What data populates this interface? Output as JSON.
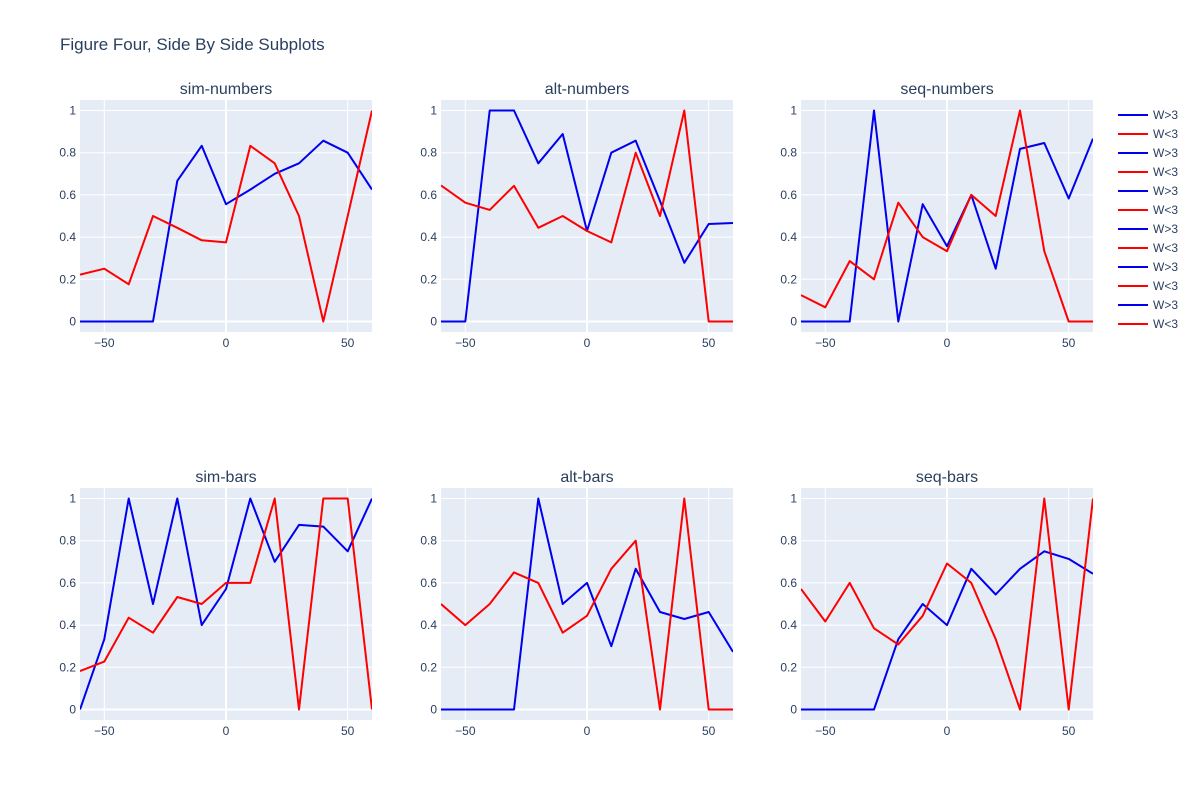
{
  "figure_title": "Figure Four, Side By Side Subplots",
  "colors": {
    "w_gt_3": "#0000ee",
    "w_lt_3": "#ff0000",
    "plot_bg": "#e5ecf6",
    "grid": "#ffffff"
  },
  "legend": {
    "position": "right",
    "entries": [
      {
        "label": "W>3",
        "color": "#0000ee"
      },
      {
        "label": "W<3",
        "color": "#ff0000"
      },
      {
        "label": "W>3",
        "color": "#0000ee"
      },
      {
        "label": "W<3",
        "color": "#ff0000"
      },
      {
        "label": "W>3",
        "color": "#0000ee"
      },
      {
        "label": "W<3",
        "color": "#ff0000"
      },
      {
        "label": "W>3",
        "color": "#0000ee"
      },
      {
        "label": "W<3",
        "color": "#ff0000"
      },
      {
        "label": "W>3",
        "color": "#0000ee"
      },
      {
        "label": "W<3",
        "color": "#ff0000"
      },
      {
        "label": "W>3",
        "color": "#0000ee"
      },
      {
        "label": "W<3",
        "color": "#ff0000"
      }
    ]
  },
  "chart_data": [
    {
      "type": "line",
      "title": "sim-numbers",
      "xlim": [
        -60,
        60
      ],
      "ylim": [
        -0.05,
        1.05
      ],
      "xticks": [
        -50,
        0,
        50
      ],
      "xticklabels": [
        "−50",
        "0",
        "50"
      ],
      "yticks": [
        0,
        0.2,
        0.4,
        0.6,
        0.8,
        1
      ],
      "yticklabels": [
        "0",
        "0.2",
        "0.4",
        "0.6",
        "0.8",
        "1"
      ],
      "grid": true,
      "x": [
        -60,
        -50,
        -40,
        -30,
        -20,
        -10,
        0,
        10,
        20,
        30,
        40,
        50,
        60
      ],
      "series": [
        {
          "name": "W>3",
          "color": "#0000ee",
          "values": [
            0,
            0,
            0,
            0,
            0.667,
            0.833,
            0.556,
            0.625,
            0.7,
            0.75,
            0.857,
            0.8,
            0.625
          ]
        },
        {
          "name": "W<3",
          "color": "#ff0000",
          "values": [
            0.222,
            0.25,
            0.176,
            0.5,
            0.444,
            0.385,
            0.375,
            0.833,
            0.75,
            0.5,
            0,
            0.5,
            1
          ]
        }
      ]
    },
    {
      "type": "line",
      "title": "alt-numbers",
      "xlim": [
        -60,
        60
      ],
      "ylim": [
        -0.05,
        1.05
      ],
      "xticks": [
        -50,
        0,
        50
      ],
      "xticklabels": [
        "−50",
        "0",
        "50"
      ],
      "yticks": [
        0,
        0.2,
        0.4,
        0.6,
        0.8,
        1
      ],
      "yticklabels": [
        "0",
        "0.2",
        "0.4",
        "0.6",
        "0.8",
        "1"
      ],
      "grid": true,
      "x": [
        -60,
        -50,
        -40,
        -30,
        -20,
        -10,
        0,
        10,
        20,
        30,
        40,
        50,
        60
      ],
      "series": [
        {
          "name": "W>3",
          "color": "#0000ee",
          "values": [
            0,
            0,
            1,
            1,
            0.75,
            0.889,
            0.429,
            0.8,
            0.857,
            0.571,
            0.278,
            0.462,
            0.467
          ]
        },
        {
          "name": "W<3",
          "color": "#ff0000",
          "values": [
            0.645,
            0.563,
            0.529,
            0.643,
            0.444,
            0.5,
            0.429,
            0.375,
            0.8,
            0.5,
            1,
            0,
            0
          ]
        }
      ]
    },
    {
      "type": "line",
      "title": "seq-numbers",
      "xlim": [
        -60,
        60
      ],
      "ylim": [
        -0.05,
        1.05
      ],
      "xticks": [
        -50,
        0,
        50
      ],
      "xticklabels": [
        "−50",
        "0",
        "50"
      ],
      "yticks": [
        0,
        0.2,
        0.4,
        0.6,
        0.8,
        1
      ],
      "yticklabels": [
        "0",
        "0.2",
        "0.4",
        "0.6",
        "0.8",
        "1"
      ],
      "grid": true,
      "x": [
        -60,
        -50,
        -40,
        -30,
        -20,
        -10,
        0,
        10,
        20,
        30,
        40,
        50,
        60
      ],
      "series": [
        {
          "name": "W>3",
          "color": "#0000ee",
          "values": [
            0,
            0,
            0,
            1,
            0,
            0.556,
            0.357,
            0.6,
            0.25,
            0.818,
            0.846,
            0.583,
            0.867
          ]
        },
        {
          "name": "W<3",
          "color": "#ff0000",
          "values": [
            0.125,
            0.067,
            0.286,
            0.2,
            0.563,
            0.4,
            0.333,
            0.6,
            0.5,
            1,
            0.333,
            0,
            0
          ]
        }
      ]
    },
    {
      "type": "line",
      "title": "sim-bars",
      "xlim": [
        -60,
        60
      ],
      "ylim": [
        -0.05,
        1.05
      ],
      "xticks": [
        -50,
        0,
        50
      ],
      "xticklabels": [
        "−50",
        "0",
        "50"
      ],
      "yticks": [
        0,
        0.2,
        0.4,
        0.6,
        0.8,
        1
      ],
      "yticklabels": [
        "0",
        "0.2",
        "0.4",
        "0.6",
        "0.8",
        "1"
      ],
      "grid": true,
      "x": [
        -60,
        -50,
        -40,
        -30,
        -20,
        -10,
        0,
        10,
        20,
        30,
        40,
        50,
        60
      ],
      "series": [
        {
          "name": "W>3",
          "color": "#0000ee",
          "values": [
            0,
            0.333,
            1,
            0.5,
            1,
            0.4,
            0.571,
            1,
            0.7,
            0.875,
            0.867,
            0.75,
            1
          ]
        },
        {
          "name": "W<3",
          "color": "#ff0000",
          "values": [
            0.182,
            0.227,
            0.435,
            0.364,
            0.533,
            0.5,
            0.6,
            0.6,
            1,
            0,
            1,
            1,
            0
          ]
        }
      ]
    },
    {
      "type": "line",
      "title": "alt-bars",
      "xlim": [
        -60,
        60
      ],
      "ylim": [
        -0.05,
        1.05
      ],
      "xticks": [
        -50,
        0,
        50
      ],
      "xticklabels": [
        "−50",
        "0",
        "50"
      ],
      "yticks": [
        0,
        0.2,
        0.4,
        0.6,
        0.8,
        1
      ],
      "yticklabels": [
        "0",
        "0.2",
        "0.4",
        "0.6",
        "0.8",
        "1"
      ],
      "grid": true,
      "x": [
        -60,
        -50,
        -40,
        -30,
        -20,
        -10,
        0,
        10,
        20,
        30,
        40,
        50,
        60
      ],
      "series": [
        {
          "name": "W>3",
          "color": "#0000ee",
          "values": [
            0,
            0,
            0,
            0,
            1,
            0.5,
            0.6,
            0.3,
            0.667,
            0.462,
            0.429,
            0.462,
            0.273
          ]
        },
        {
          "name": "W<3",
          "color": "#ff0000",
          "values": [
            0.5,
            0.4,
            0.5,
            0.65,
            0.6,
            0.364,
            0.444,
            0.667,
            0.8,
            0,
            1,
            0,
            0
          ]
        }
      ]
    },
    {
      "type": "line",
      "title": "seq-bars",
      "xlim": [
        -60,
        60
      ],
      "ylim": [
        -0.05,
        1.05
      ],
      "xticks": [
        -50,
        0,
        50
      ],
      "xticklabels": [
        "−50",
        "0",
        "50"
      ],
      "yticks": [
        0,
        0.2,
        0.4,
        0.6,
        0.8,
        1
      ],
      "yticklabels": [
        "0",
        "0.2",
        "0.4",
        "0.6",
        "0.8",
        "1"
      ],
      "grid": true,
      "x": [
        -60,
        -50,
        -40,
        -30,
        -20,
        -10,
        0,
        10,
        20,
        30,
        40,
        50,
        60
      ],
      "series": [
        {
          "name": "W>3",
          "color": "#0000ee",
          "values": [
            0,
            0,
            0,
            0,
            0.333,
            0.5,
            0.4,
            0.667,
            0.545,
            0.667,
            0.75,
            0.714,
            0.643
          ]
        },
        {
          "name": "W<3",
          "color": "#ff0000",
          "values": [
            0.571,
            0.417,
            0.6,
            0.385,
            0.308,
            0.444,
            0.692,
            0.6,
            0.333,
            0,
            1,
            0,
            1
          ]
        }
      ]
    }
  ]
}
